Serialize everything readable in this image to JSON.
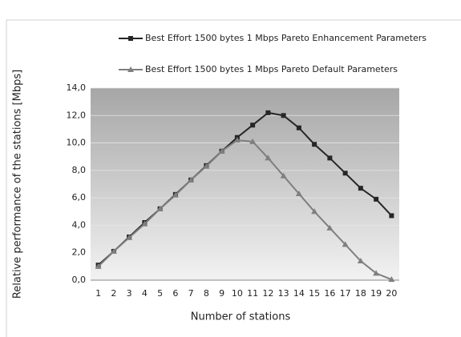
{
  "chart_data": {
    "type": "line",
    "x_label": "Number of stations",
    "y_label": "Relative performance of the stations  [Mbps]",
    "categories": [
      "1",
      "2",
      "3",
      "4",
      "5",
      "6",
      "7",
      "8",
      "9",
      "10",
      "11",
      "12",
      "13",
      "14",
      "15",
      "16",
      "17",
      "18",
      "19",
      "20"
    ],
    "series": [
      {
        "name": "Best Effort 1500 bytes 1 Mbps Pareto Enhancement Parameters",
        "color": "#262626",
        "marker": "square",
        "values": [
          1.1,
          2.1,
          3.15,
          4.2,
          5.2,
          6.25,
          7.3,
          8.35,
          9.4,
          10.4,
          11.3,
          12.2,
          12.0,
          11.1,
          9.9,
          8.9,
          7.8,
          6.7,
          5.9,
          4.7
        ]
      },
      {
        "name": "Best Effort 1500 bytes 1 Mbps Pareto Default Parameters",
        "color": "#7f7f7f",
        "marker": "triangle",
        "values": [
          1.0,
          2.1,
          3.1,
          4.1,
          5.2,
          6.2,
          7.3,
          8.3,
          9.4,
          10.2,
          10.1,
          8.9,
          7.6,
          6.3,
          5.0,
          3.8,
          2.6,
          1.4,
          0.5,
          0.05
        ]
      }
    ],
    "ylim": [
      0,
      14
    ],
    "yticks": [
      {
        "value": 0,
        "label": "0,0"
      },
      {
        "value": 2,
        "label": "2,0"
      },
      {
        "value": 4,
        "label": "4,0"
      },
      {
        "value": 6,
        "label": "6,0"
      },
      {
        "value": 8,
        "label": "8,0"
      },
      {
        "value": 10,
        "label": "10,0"
      },
      {
        "value": 12,
        "label": "12,0"
      },
      {
        "value": 14,
        "label": "14,0"
      }
    ],
    "grid": true
  }
}
